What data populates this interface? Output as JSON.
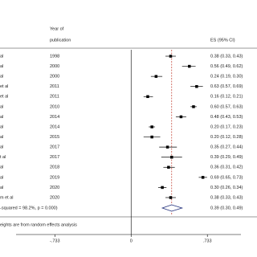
{
  "chart_data": {
    "type": "forest",
    "header_year": [
      "Year of",
      "publication"
    ],
    "header_es": "ES (95% CI)",
    "studies": [
      "al",
      "al",
      "al",
      "et al",
      "et al",
      "al",
      "al",
      "al",
      "al",
      "al",
      "t al",
      "al",
      "al",
      "al",
      "m et al"
    ],
    "years": [
      "1998",
      "2000",
      "2000",
      "2011",
      "2011",
      "2010",
      "2014",
      "2014",
      "2015",
      "2017",
      "2017",
      "2018",
      "2019",
      "2020",
      "2020"
    ],
    "values": [
      0.38,
      0.56,
      0.24,
      0.63,
      0.16,
      0.6,
      0.48,
      0.2,
      0.2,
      0.35,
      0.39,
      0.36,
      0.69,
      0.3,
      0.38
    ],
    "lower": [
      0.33,
      0.49,
      0.19,
      0.57,
      0.12,
      0.57,
      0.43,
      0.17,
      0.12,
      0.27,
      0.29,
      0.31,
      0.65,
      0.26,
      0.33
    ],
    "upper": [
      0.43,
      0.62,
      0.3,
      0.69,
      0.21,
      0.63,
      0.53,
      0.23,
      0.28,
      0.44,
      0.49,
      0.42,
      0.73,
      0.34,
      0.43
    ],
    "value_labels": [
      "0.38 (0.33, 0.43)",
      "0.56 (0.49, 0.62)",
      "0.24 (0.19, 0.30)",
      "0.63 (0.57, 0.69)",
      "0.16 (0.12, 0.21)",
      "0.60 (0.57, 0.63)",
      "0.48 (0.43, 0.53)",
      "0.20 (0.17, 0.23)",
      "0.20 (0.12, 0.28)",
      "0.35 (0.27, 0.44)",
      "0.39 (0.29, 0.49)",
      "0.36 (0.31, 0.42)",
      "0.69 (0.65, 0.73)",
      "0.30 (0.26, 0.34)",
      "0.38 (0.33, 0.43)"
    ],
    "pooled": {
      "label": "-squared = 98.2%, p = 0.000)",
      "value": 0.39,
      "lower": 0.3,
      "upper": 0.49,
      "value_label": "0.39 (0.30, 0.49)"
    },
    "note": "eights are from random effects analysis",
    "xlim": [
      -1.26,
      1.21
    ],
    "xticks": [
      {
        "value": -0.733,
        "label": "-.733"
      },
      0,
      {
        "value": 0.733,
        "label": ".733"
      }
    ],
    "color": "#000000",
    "pooled_line_color": "#c0392b",
    "diamond_color": "#1f2d7a"
  }
}
